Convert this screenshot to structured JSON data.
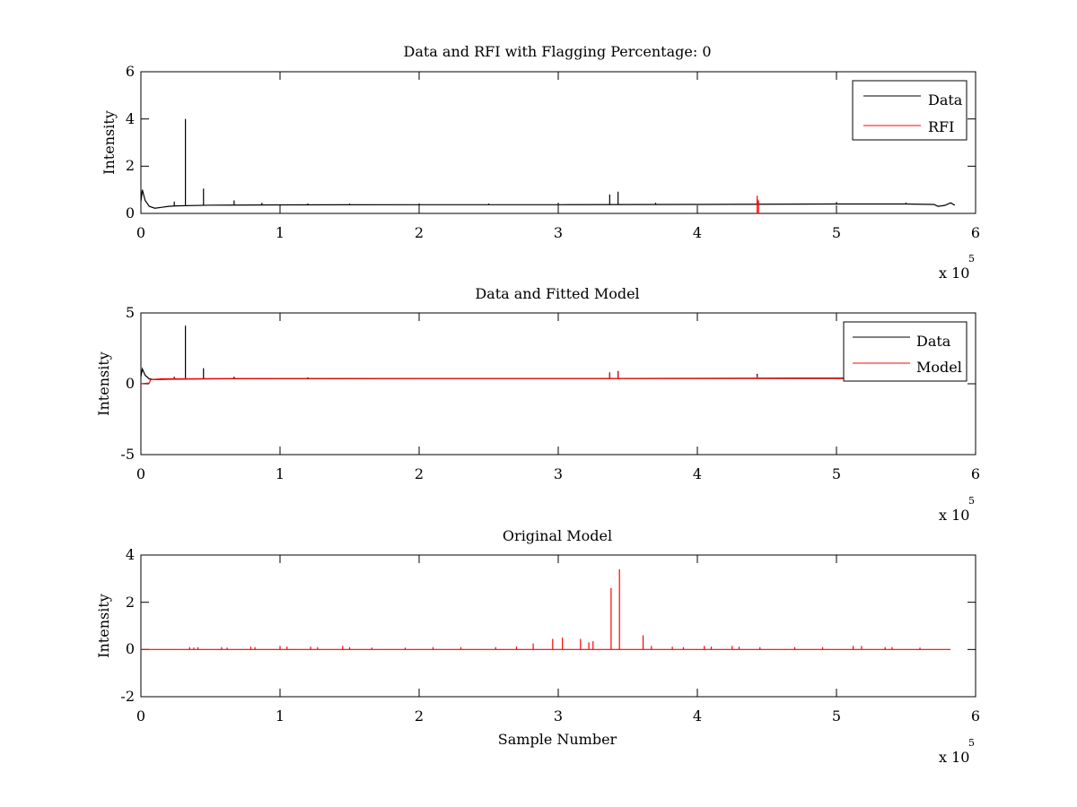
{
  "chart_data": [
    {
      "type": "line",
      "title": "Data and RFI with Flagging Percentage: 0",
      "xlabel": "",
      "ylabel": "Intensity",
      "xlim": [
        0,
        6
      ],
      "ylim": [
        0,
        6
      ],
      "x_multiplier": "x 10",
      "x_multiplier_exponent": "5",
      "x_ticks": [
        "0",
        "1",
        "2",
        "3",
        "4",
        "5",
        "6"
      ],
      "y_ticks": [
        {
          "value": 0,
          "label": "0"
        },
        {
          "value": 2,
          "label": "2"
        },
        {
          "value": 4,
          "label": "4"
        },
        {
          "value": 6,
          "label": "6"
        }
      ],
      "legend_position": "top-right",
      "series": [
        {
          "name": "Data",
          "color": "#000000",
          "baseline": [
            [
              0.0,
              0.5
            ],
            [
              0.01,
              1.0
            ],
            [
              0.03,
              0.55
            ],
            [
              0.06,
              0.3
            ],
            [
              0.1,
              0.22
            ],
            [
              0.15,
              0.26
            ],
            [
              0.2,
              0.3
            ],
            [
              0.25,
              0.32
            ],
            [
              0.5,
              0.35
            ],
            [
              1.0,
              0.36
            ],
            [
              2.0,
              0.37
            ],
            [
              3.0,
              0.37
            ],
            [
              4.0,
              0.38
            ],
            [
              5.0,
              0.4
            ],
            [
              5.5,
              0.4
            ],
            [
              5.7,
              0.38
            ],
            [
              5.73,
              0.3
            ],
            [
              5.78,
              0.34
            ],
            [
              5.82,
              0.45
            ],
            [
              5.85,
              0.35
            ]
          ],
          "spikes": [
            [
              0.24,
              0.5
            ],
            [
              0.32,
              4.0
            ],
            [
              0.45,
              1.05
            ],
            [
              0.67,
              0.55
            ],
            [
              0.87,
              0.45
            ],
            [
              1.2,
              0.42
            ],
            [
              1.5,
              0.42
            ],
            [
              2.0,
              0.42
            ],
            [
              2.5,
              0.42
            ],
            [
              3.0,
              0.45
            ],
            [
              3.37,
              0.8
            ],
            [
              3.43,
              0.92
            ],
            [
              3.7,
              0.45
            ],
            [
              4.43,
              0.6
            ],
            [
              5.0,
              0.48
            ],
            [
              5.5,
              0.46
            ]
          ]
        },
        {
          "name": "RFI",
          "color": "#ff0000",
          "baseline": [],
          "spikes": [
            [
              4.43,
              0.75
            ],
            [
              4.44,
              0.55
            ]
          ]
        }
      ]
    },
    {
      "type": "line",
      "title": "Data and Fitted Model",
      "xlabel": "",
      "ylabel": "Intensity",
      "xlim": [
        0,
        6
      ],
      "ylim": [
        -5,
        5
      ],
      "x_multiplier": "x 10",
      "x_multiplier_exponent": "5",
      "x_ticks": [
        "0",
        "1",
        "2",
        "3",
        "4",
        "5",
        "6"
      ],
      "y_ticks": [
        {
          "value": -5,
          "label": "-5"
        },
        {
          "value": 0,
          "label": "0"
        },
        {
          "value": 5,
          "label": "5"
        }
      ],
      "legend_position": "top-right",
      "series": [
        {
          "name": "Data",
          "color": "#000000",
          "baseline": [
            [
              0.0,
              0.5
            ],
            [
              0.01,
              1.05
            ],
            [
              0.03,
              0.6
            ],
            [
              0.06,
              0.35
            ],
            [
              0.1,
              0.3
            ],
            [
              0.2,
              0.32
            ],
            [
              0.5,
              0.35
            ],
            [
              1.0,
              0.36
            ],
            [
              2.0,
              0.37
            ],
            [
              3.0,
              0.37
            ],
            [
              4.0,
              0.38
            ],
            [
              5.0,
              0.4
            ],
            [
              5.5,
              0.4
            ]
          ],
          "spikes": [
            [
              0.24,
              0.5
            ],
            [
              0.32,
              4.1
            ],
            [
              0.45,
              1.1
            ],
            [
              0.67,
              0.5
            ],
            [
              1.2,
              0.45
            ],
            [
              3.37,
              0.8
            ],
            [
              3.43,
              0.9
            ],
            [
              4.43,
              0.7
            ]
          ]
        },
        {
          "name": "Model",
          "color": "#ff0000",
          "baseline": [
            [
              0.0,
              0.0
            ],
            [
              0.06,
              0.05
            ],
            [
              0.07,
              0.3
            ],
            [
              0.15,
              0.35
            ],
            [
              0.5,
              0.36
            ],
            [
              1.0,
              0.37
            ],
            [
              2.0,
              0.37
            ],
            [
              3.0,
              0.37
            ],
            [
              4.0,
              0.37
            ],
            [
              5.0,
              0.37
            ],
            [
              5.82,
              0.37
            ]
          ],
          "spikes": [
            [
              3.37,
              0.75
            ],
            [
              3.43,
              0.85
            ],
            [
              4.43,
              0.55
            ]
          ]
        }
      ]
    },
    {
      "type": "line",
      "title": "Original Model",
      "xlabel": "Sample Number",
      "ylabel": "Intensity",
      "xlim": [
        0,
        6
      ],
      "ylim": [
        -2,
        4
      ],
      "x_multiplier": "x 10",
      "x_multiplier_exponent": "5",
      "x_ticks": [
        "0",
        "1",
        "2",
        "3",
        "4",
        "5",
        "6"
      ],
      "y_ticks": [
        {
          "value": -2,
          "label": "-2"
        },
        {
          "value": 0,
          "label": "0"
        },
        {
          "value": 2,
          "label": "2"
        },
        {
          "value": 4,
          "label": "4"
        }
      ],
      "legend_position": "none",
      "series": [
        {
          "name": "",
          "color": "#ff0000",
          "baseline": [
            [
              0.0,
              0.0
            ],
            [
              5.82,
              0.0
            ]
          ],
          "spikes": [
            [
              0.35,
              0.1
            ],
            [
              0.38,
              0.08
            ],
            [
              0.41,
              0.1
            ],
            [
              0.58,
              0.1
            ],
            [
              0.62,
              0.08
            ],
            [
              0.79,
              0.12
            ],
            [
              0.82,
              0.1
            ],
            [
              1.0,
              0.15
            ],
            [
              1.05,
              0.12
            ],
            [
              1.22,
              0.12
            ],
            [
              1.27,
              0.1
            ],
            [
              1.45,
              0.15
            ],
            [
              1.5,
              0.1
            ],
            [
              1.66,
              0.08
            ],
            [
              1.9,
              0.08
            ],
            [
              2.1,
              0.1
            ],
            [
              2.3,
              0.1
            ],
            [
              2.55,
              0.1
            ],
            [
              2.7,
              0.12
            ],
            [
              2.82,
              0.25
            ],
            [
              2.96,
              0.45
            ],
            [
              3.03,
              0.5
            ],
            [
              3.16,
              0.45
            ],
            [
              3.22,
              0.3
            ],
            [
              3.25,
              0.35
            ],
            [
              3.38,
              2.6
            ],
            [
              3.44,
              3.4
            ],
            [
              3.61,
              0.6
            ],
            [
              3.67,
              0.15
            ],
            [
              3.82,
              0.12
            ],
            [
              3.9,
              0.1
            ],
            [
              4.05,
              0.15
            ],
            [
              4.1,
              0.12
            ],
            [
              4.25,
              0.15
            ],
            [
              4.3,
              0.12
            ],
            [
              4.45,
              0.1
            ],
            [
              4.7,
              0.1
            ],
            [
              4.9,
              0.1
            ],
            [
              5.12,
              0.15
            ],
            [
              5.18,
              0.15
            ],
            [
              5.35,
              0.1
            ],
            [
              5.4,
              0.1
            ],
            [
              5.6,
              0.08
            ]
          ]
        }
      ]
    }
  ]
}
